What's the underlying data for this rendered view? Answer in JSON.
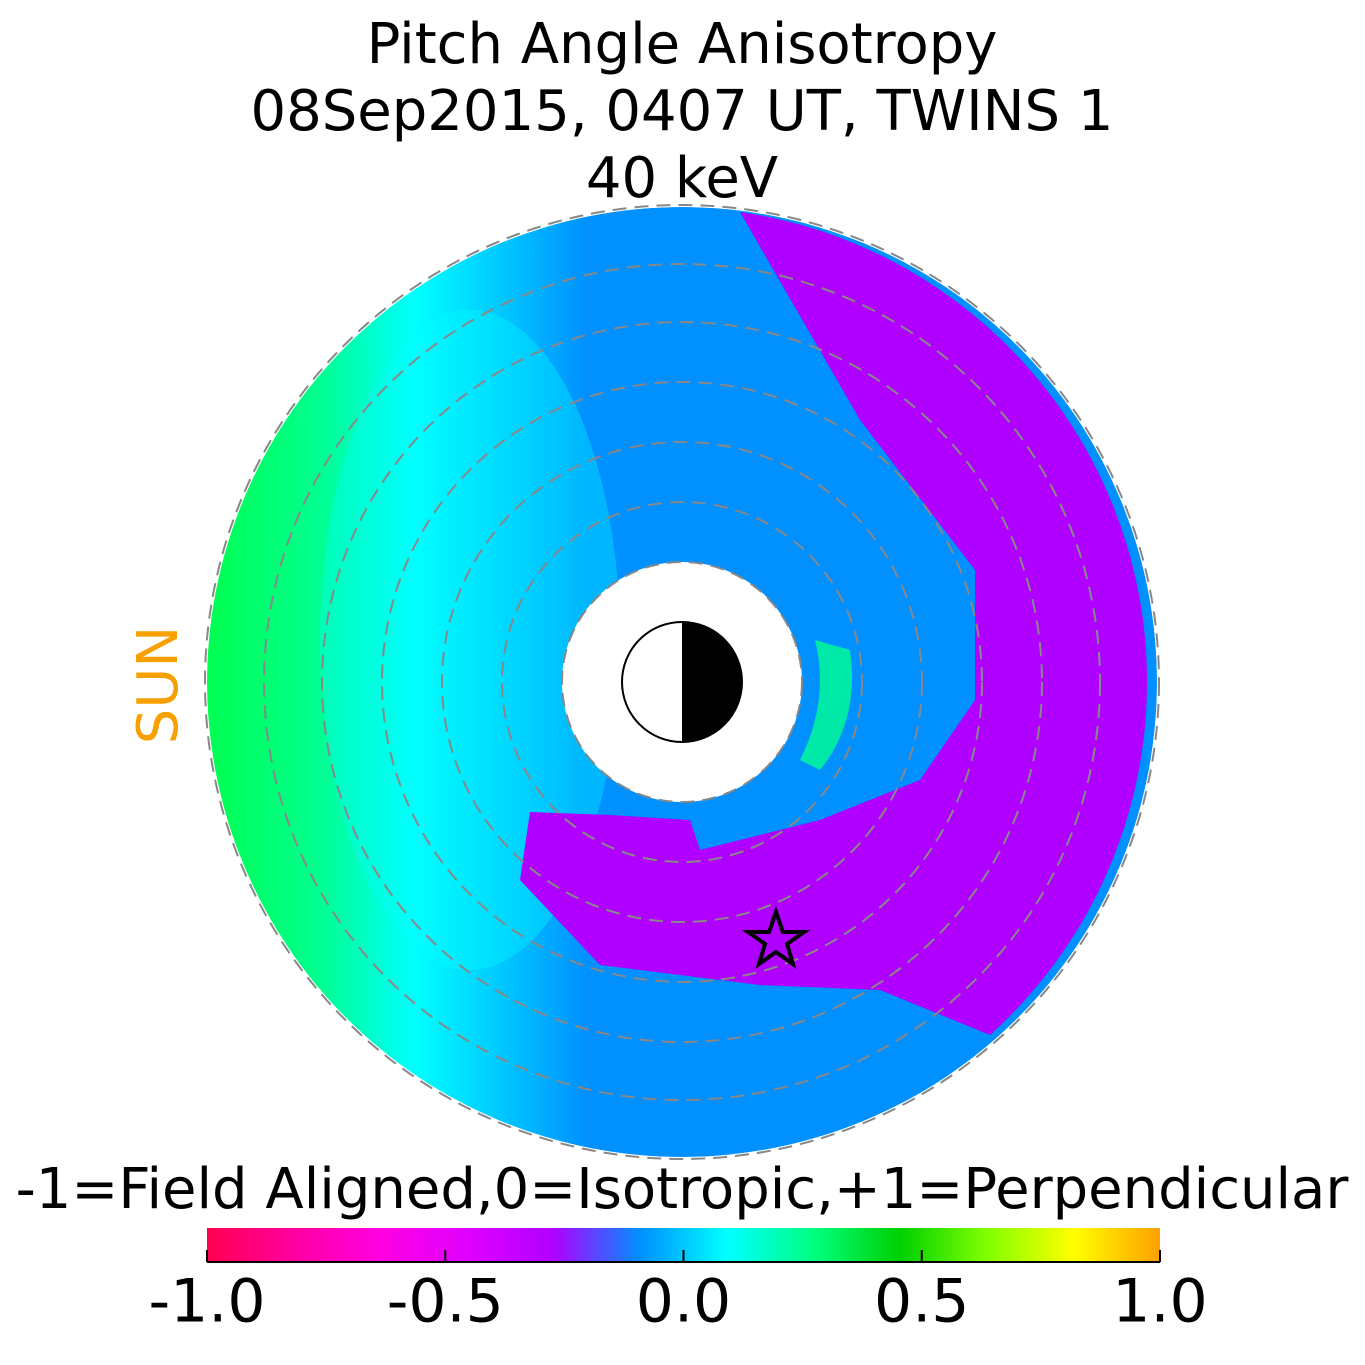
{
  "chart_data": {
    "type": "polar-map",
    "title": "Pitch Angle Anisotropy",
    "subtitle": "08Sep2015, 0407 UT,  TWINS 1",
    "energy": "40 keV",
    "sun_label": "SUN",
    "colorbar_label": "-1=Field Aligned,0=Isotropic,+1=Perpendicular",
    "clim": [
      -1.0,
      1.0
    ],
    "cticks": [
      {
        "value": -1.0,
        "label": "-1.0"
      },
      -0.5,
      {
        "value": 0,
        "label": "0.0"
      },
      0.5,
      {
        "value": 1.0,
        "label": "1.0"
      }
    ],
    "colormap": [
      "#ff0050",
      "#ff00a0",
      "#ff00e0",
      "#e000ff",
      "#b000ff",
      "#0090ff",
      "#00ffff",
      "#00ff80",
      "#00d000",
      "#80ff00",
      "#ffff00",
      "#ffa000"
    ]
  }
}
